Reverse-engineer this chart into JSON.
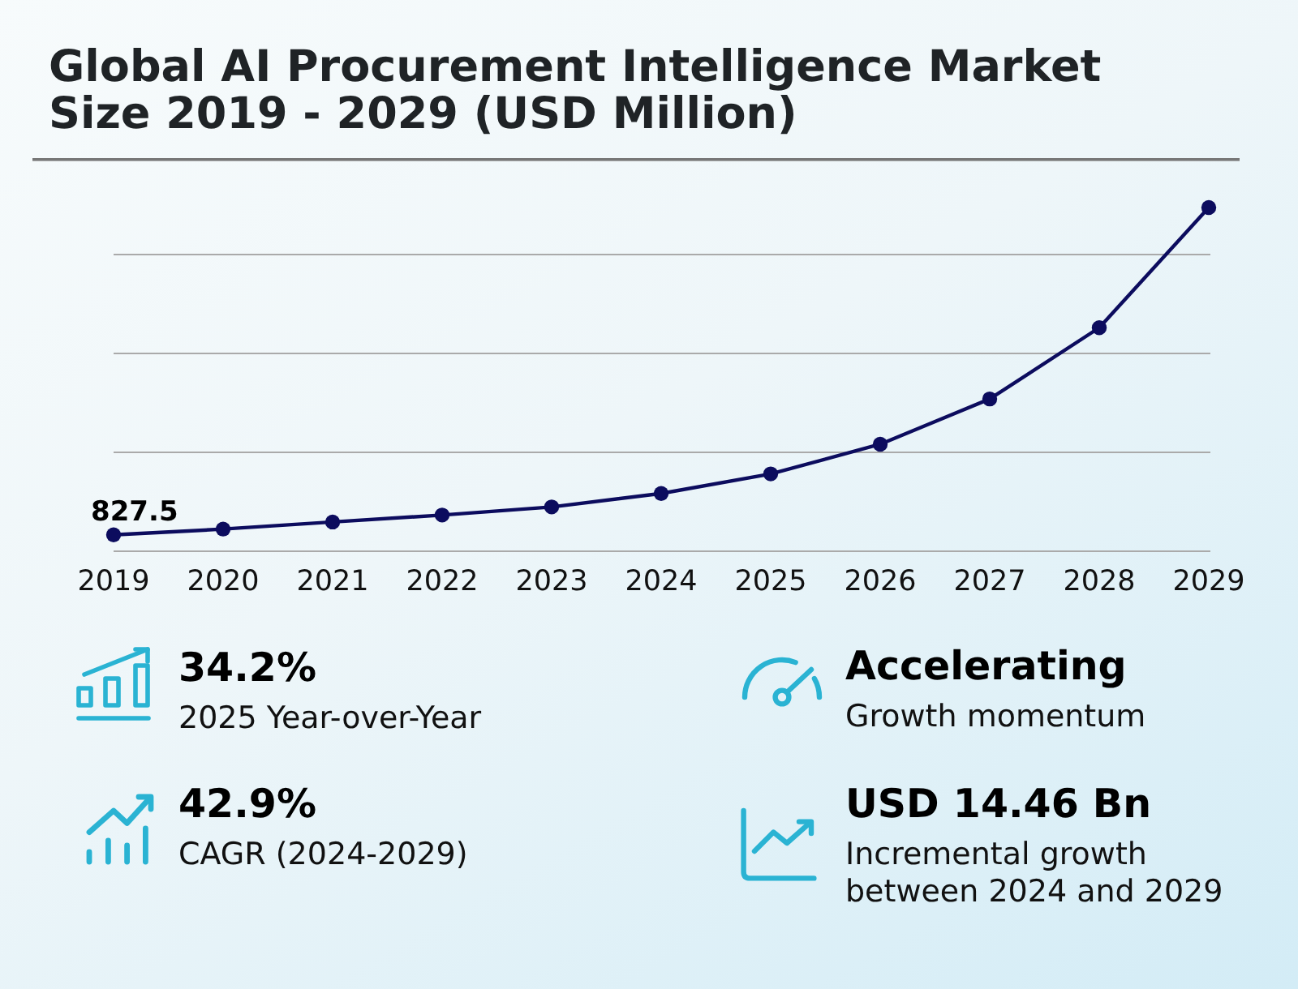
{
  "chart_data": [
    {
      "type": "line",
      "title": "Global AI Procurement Intelligence Market Size 2019 - 2029 (USD Million)",
      "categories": [
        "2019",
        "2020",
        "2021",
        "2022",
        "2023",
        "2024",
        "2025",
        "2026",
        "2027",
        "2028",
        "2029"
      ],
      "values": [
        827.5,
        1120,
        1480,
        1830,
        2240,
        2920,
        3910,
        5410,
        7700,
        11300,
        17380
      ],
      "color": "#0c0c5e",
      "ylim": [
        0,
        20000
      ],
      "yticks": [
        {
          "value": 0,
          "label": null
        },
        {
          "value": 5000,
          "label": null
        },
        {
          "value": 10000,
          "label": null
        },
        {
          "value": 15000,
          "label": null
        }
      ],
      "tick_labels": "x",
      "value_labels": [
        "827.5",
        null,
        null,
        null,
        null,
        null,
        null,
        null,
        null,
        null,
        null
      ],
      "marker": "circle",
      "grid": true
    },
    {
      "type": "other",
      "annotations": [
        "34.2%",
        "2025 Year-over-Year",
        "Accelerating",
        "Growth momentum",
        "42.9%",
        "CAGR (2024-2029)",
        "USD 14.46 Bn",
        "Incremental growth between 2024 and 2029"
      ]
    }
  ]
}
